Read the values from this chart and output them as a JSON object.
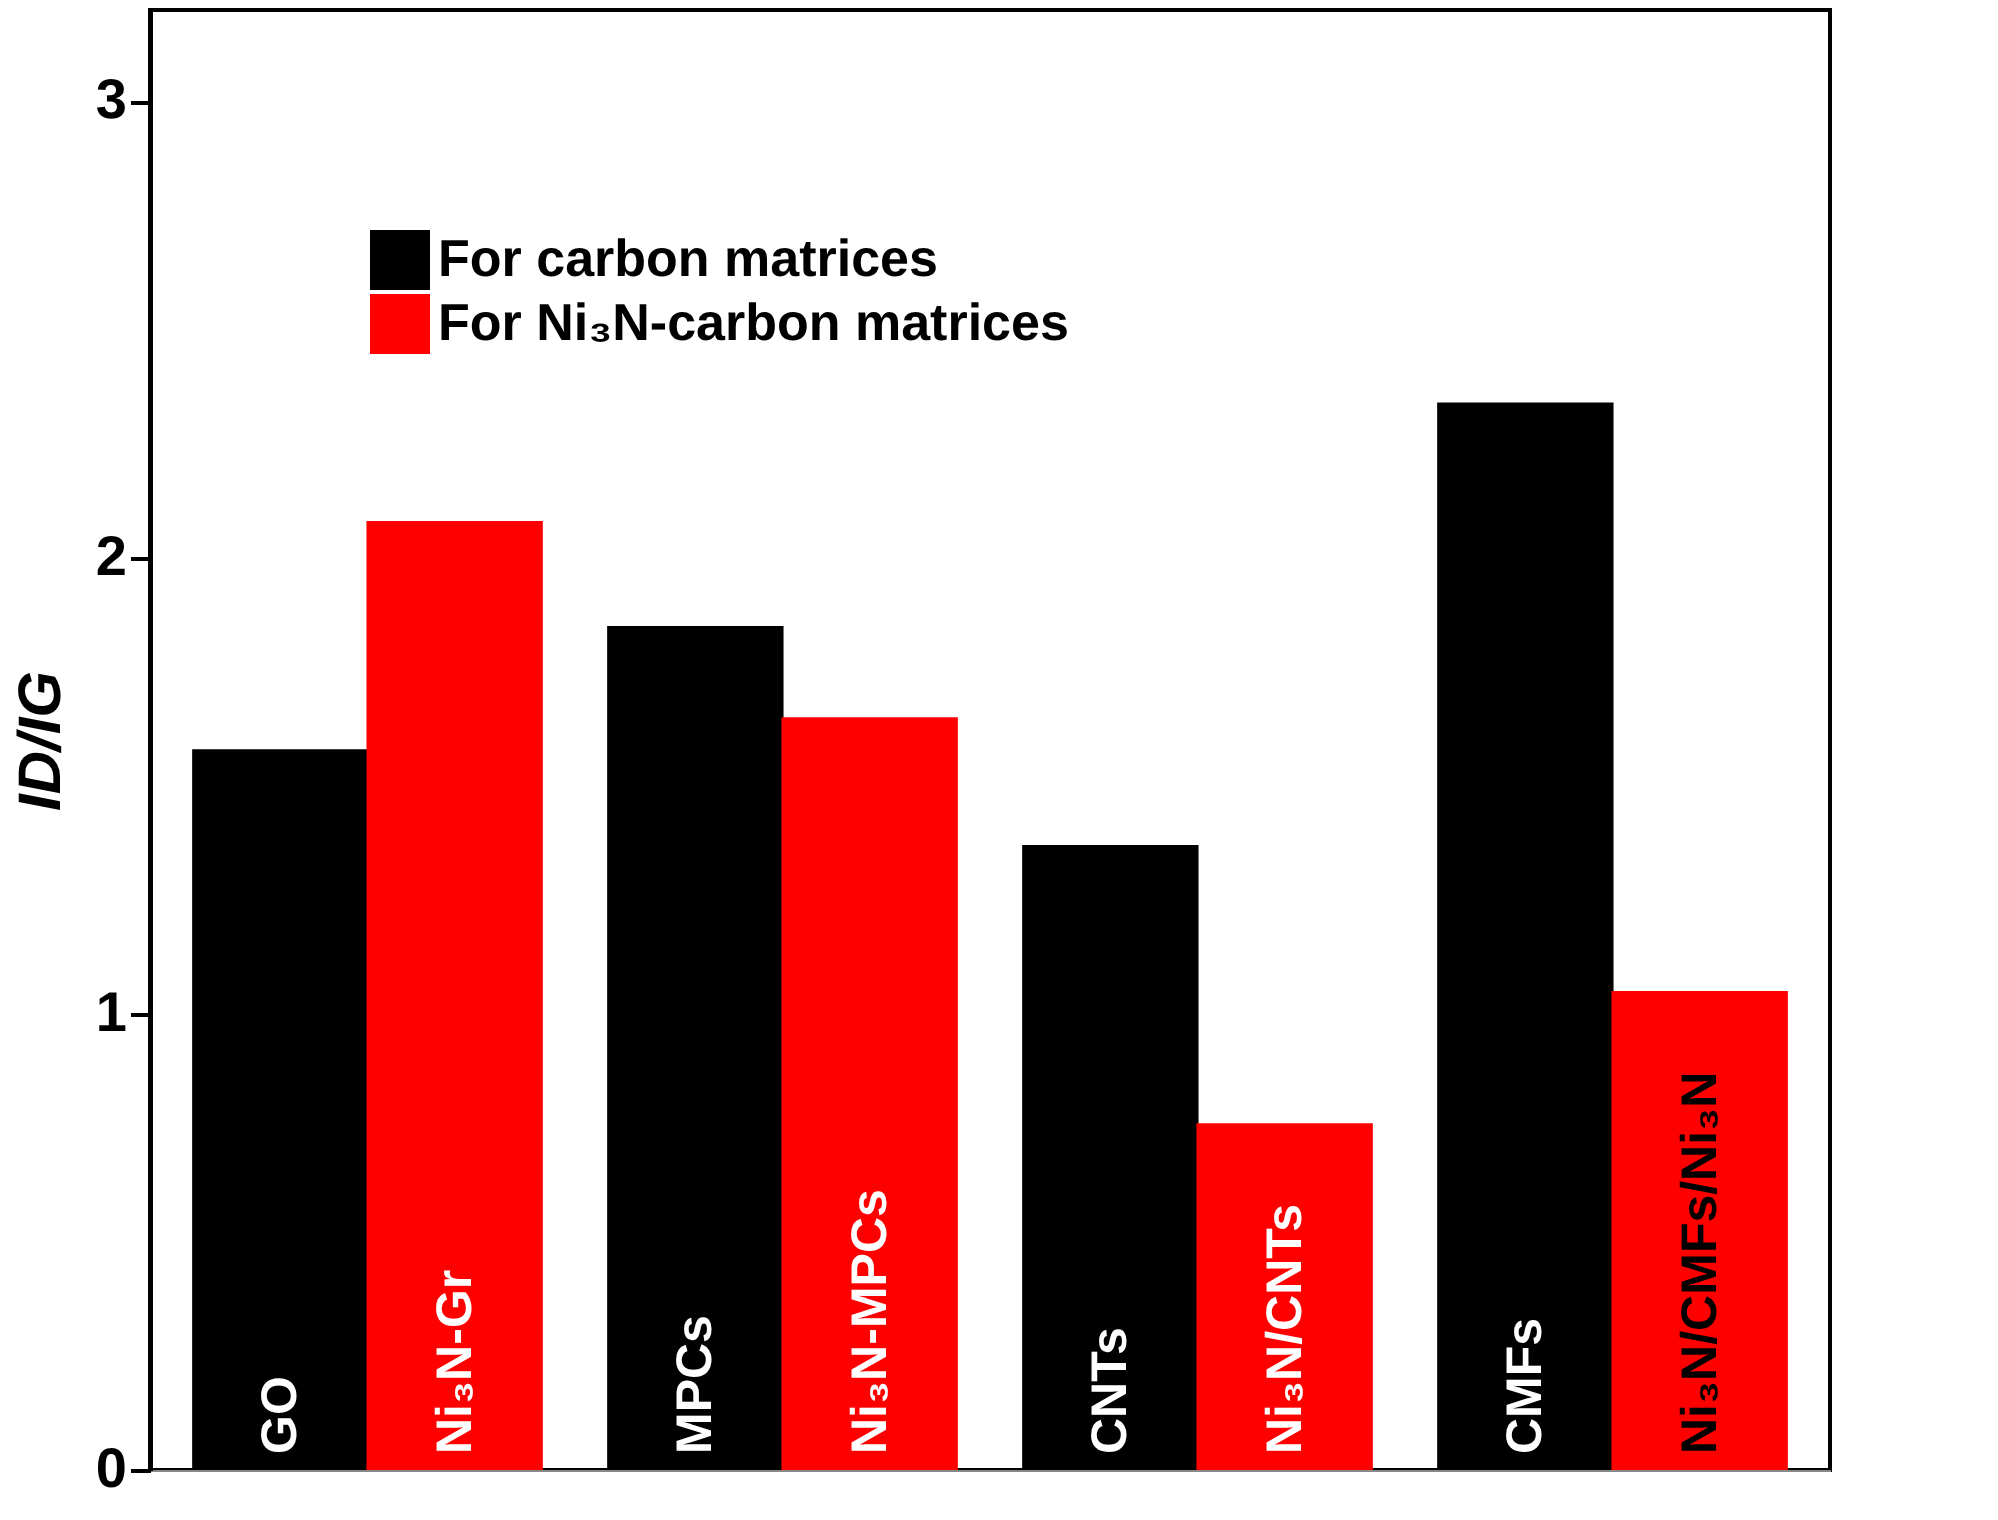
{
  "chart_data": {
    "type": "bar",
    "ylabel": "ID/IG",
    "categories": [
      "GO",
      "Ni₃N-Gr",
      "MPCs",
      "Ni₃N-MPCs",
      "CNTs",
      "Ni₃N/CNTs",
      "CMFs",
      "Ni₃N/CMFs/Ni₃N"
    ],
    "series": [
      {
        "name": "For carbon matrices",
        "color": "#000000",
        "values": [
          1.58,
          null,
          1.85,
          null,
          1.37,
          null,
          2.34,
          null
        ]
      },
      {
        "name": "For Ni₃N-carbon matrices",
        "color": "#ff0000",
        "values": [
          null,
          2.08,
          null,
          1.65,
          null,
          0.76,
          null,
          1.05
        ]
      }
    ],
    "ylim": [
      0,
      3.2
    ],
    "yticks": [
      0,
      1,
      2,
      3
    ],
    "grid": false,
    "legend": "top left",
    "tick_labels": "y"
  }
}
